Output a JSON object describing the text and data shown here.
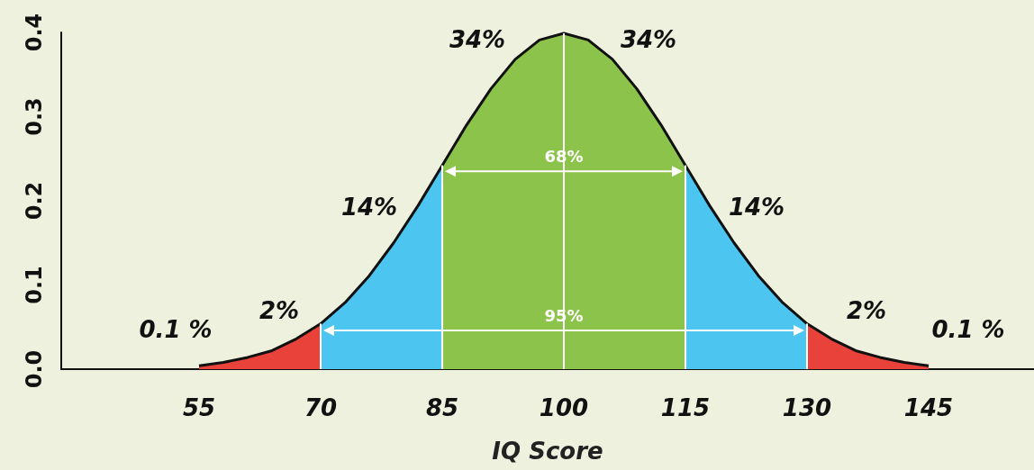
{
  "chart_data": {
    "type": "area",
    "xlabel": "IQ Score",
    "xlim": [
      38,
      158
    ],
    "xticks": [
      55,
      70,
      85,
      100,
      115,
      130,
      145
    ],
    "ylim": [
      0,
      0.4
    ],
    "yticks": [
      {
        "value": 0,
        "label": "0.0"
      },
      0.1,
      0.2,
      0.3,
      0.4
    ],
    "grid": false,
    "series": [
      {
        "color": "#e8423a",
        "x": [
          55,
          58,
          61,
          64,
          67,
          70
        ],
        "values": [
          0.004,
          0.008,
          0.014,
          0.022,
          0.036,
          0.054
        ]
      },
      {
        "color": "#4cc6f1",
        "x": [
          70,
          73,
          76,
          79,
          82,
          85
        ],
        "values": [
          0.054,
          0.079,
          0.111,
          0.15,
          0.194,
          0.242
        ]
      },
      {
        "color": "#8cc34a",
        "x": [
          85,
          88,
          91,
          94,
          97,
          100,
          103,
          106,
          109,
          112,
          115
        ],
        "values": [
          0.242,
          0.29,
          0.333,
          0.368,
          0.391,
          0.399,
          0.391,
          0.368,
          0.333,
          0.29,
          0.242
        ]
      },
      {
        "color": "#4cc6f1",
        "x": [
          115,
          118,
          121,
          124,
          127,
          130
        ],
        "values": [
          0.242,
          0.194,
          0.15,
          0.111,
          0.079,
          0.054
        ]
      },
      {
        "color": "#e8423a",
        "x": [
          130,
          133,
          136,
          139,
          142,
          145
        ],
        "values": [
          0.054,
          0.036,
          0.022,
          0.014,
          0.008,
          0.004
        ]
      },
      {
        "type": "line",
        "color": "#ffffff",
        "marker": "triangle",
        "x": [
          86,
          114
        ],
        "values": [
          0.235,
          0.235
        ]
      },
      {
        "type": "line",
        "color": "#ffffff",
        "marker": "triangle",
        "x": [
          71,
          129
        ],
        "values": [
          0.046,
          0.046
        ]
      }
    ],
    "ref_lines": [
      {
        "axis": "x",
        "value": 70,
        "color": "#ffffff"
      },
      {
        "axis": "x",
        "value": 85,
        "color": "#ffffff"
      },
      {
        "axis": "x",
        "value": 100,
        "color": "#ffffff"
      },
      {
        "axis": "x",
        "value": 115,
        "color": "#ffffff"
      },
      {
        "axis": "x",
        "value": 130,
        "color": "#ffffff"
      }
    ],
    "annotations": [
      "34%",
      "34%",
      "14%",
      "14%",
      "2%",
      "2%",
      "0.1 %",
      "0.1 %",
      {
        "text": "68%",
        "x": 100,
        "y": 0.249
      },
      {
        "text": "95%",
        "x": 100,
        "y": 0.059
      }
    ]
  }
}
